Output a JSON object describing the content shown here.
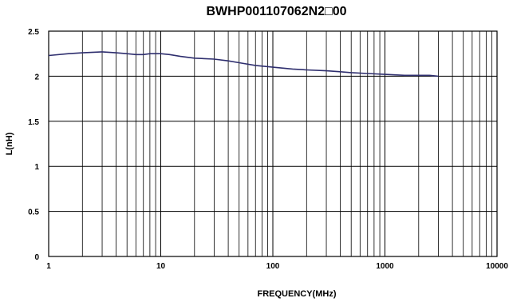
{
  "chart_data": {
    "type": "line",
    "title": "BWHP001107062N2□00",
    "xlabel": "FREQUENCY(MHz)",
    "ylabel": "L(nH)",
    "xscale": "log",
    "xlim": [
      1,
      10000
    ],
    "ylim": [
      0,
      2.5
    ],
    "grid": true,
    "line_color": "#2e2e6e",
    "xticks": [
      {
        "value": 1,
        "label": "1"
      },
      {
        "value": 10,
        "label": "10"
      },
      {
        "value": 100,
        "label": "100"
      },
      {
        "value": 1000,
        "label": "1000"
      },
      {
        "value": 10000,
        "label": "10000"
      }
    ],
    "yticks": [
      {
        "value": 0,
        "label": "0"
      },
      {
        "value": 0.5,
        "label": "0.5"
      },
      {
        "value": 1,
        "label": "1"
      },
      {
        "value": 1.5,
        "label": "1.5"
      },
      {
        "value": 2,
        "label": "2"
      },
      {
        "value": 2.5,
        "label": "2.5"
      }
    ],
    "series": [
      {
        "x": [
          1,
          1.5,
          2,
          3,
          4,
          5,
          6,
          7,
          8,
          9,
          10,
          12,
          15,
          20,
          30,
          40,
          50,
          70,
          100,
          150,
          200,
          300,
          400,
          500,
          700,
          1000,
          1500,
          2000,
          2500,
          3000
        ],
        "y": [
          2.23,
          2.25,
          2.26,
          2.27,
          2.26,
          2.25,
          2.24,
          2.24,
          2.25,
          2.25,
          2.25,
          2.24,
          2.22,
          2.2,
          2.19,
          2.17,
          2.15,
          2.12,
          2.1,
          2.08,
          2.07,
          2.06,
          2.05,
          2.04,
          2.03,
          2.02,
          2.01,
          2.01,
          2.01,
          2.0
        ]
      }
    ]
  }
}
